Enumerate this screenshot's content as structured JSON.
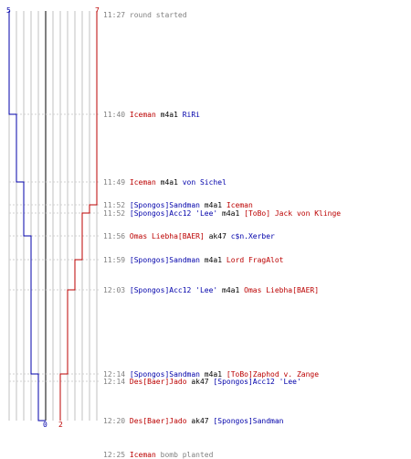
{
  "scores": {
    "blue_start": "5",
    "red_start": "7",
    "blue_end": "0",
    "red_end": "2"
  },
  "colors": {
    "blue_team": "#0000aa",
    "red_team": "#bb0000",
    "time": "#808080",
    "grid": "#c0c0c0",
    "dashed": "#d0d0d0",
    "center": "#808080"
  },
  "events": [
    {
      "time": "11:27",
      "parts": [
        {
          "text": "round started",
          "color": "grey"
        }
      ]
    },
    {
      "time": "11:40",
      "parts": [
        {
          "text": "Iceman",
          "color": "red"
        },
        {
          "text": " m4a1 ",
          "color": "blk"
        },
        {
          "text": "RiRi",
          "color": "blue"
        }
      ]
    },
    {
      "time": "11:49",
      "parts": [
        {
          "text": "Iceman",
          "color": "red"
        },
        {
          "text": " m4a1 ",
          "color": "blk"
        },
        {
          "text": "von Sichel",
          "color": "blue"
        }
      ]
    },
    {
      "time": "11:52",
      "parts": [
        {
          "text": "[Spongos]Sandman",
          "color": "blue"
        },
        {
          "text": " m4a1 ",
          "color": "blk"
        },
        {
          "text": "Iceman",
          "color": "red"
        }
      ]
    },
    {
      "time": "11:52",
      "parts": [
        {
          "text": "[Spongos]Acc12 'Lee'",
          "color": "blue"
        },
        {
          "text": " m4a1 ",
          "color": "blk"
        },
        {
          "text": "[ToBo] Jack von Klinge",
          "color": "red"
        }
      ]
    },
    {
      "time": "11:56",
      "parts": [
        {
          "text": "Omas Liebha[BAER]",
          "color": "red"
        },
        {
          "text": " ak47 ",
          "color": "blk"
        },
        {
          "text": "c$n.Xerber",
          "color": "blue"
        }
      ]
    },
    {
      "time": "11:59",
      "parts": [
        {
          "text": "[Spongos]Sandman",
          "color": "blue"
        },
        {
          "text": " m4a1 ",
          "color": "blk"
        },
        {
          "text": "Lord FragAlot",
          "color": "red"
        }
      ]
    },
    {
      "time": "12:03",
      "parts": [
        {
          "text": "[Spongos]Acc12 'Lee'",
          "color": "blue"
        },
        {
          "text": " m4a1 ",
          "color": "blk"
        },
        {
          "text": "Omas Liebha[BAER]",
          "color": "red"
        }
      ]
    },
    {
      "time": "12:14",
      "parts": [
        {
          "text": "[Spongos]Sandman",
          "color": "blue"
        },
        {
          "text": " m4a1 ",
          "color": "blk"
        },
        {
          "text": "[ToBo]Zaphod v. Zange",
          "color": "red"
        }
      ]
    },
    {
      "time": "12:14",
      "parts": [
        {
          "text": "Des[Baer]Jado",
          "color": "red"
        },
        {
          "text": " ak47 ",
          "color": "blk"
        },
        {
          "text": "[Spongos]Acc12 'Lee'",
          "color": "blue"
        }
      ]
    },
    {
      "time": "12:20",
      "parts": [
        {
          "text": "Des[Baer]Jado",
          "color": "red"
        },
        {
          "text": " ak47 ",
          "color": "blk"
        },
        {
          "text": "[Spongos]Sandman",
          "color": "blue"
        }
      ]
    },
    {
      "time": "12:25",
      "parts": [
        {
          "text": "Iceman",
          "color": "red"
        },
        {
          "text": " bomb planted ",
          "color": "grey"
        }
      ]
    }
  ]
}
